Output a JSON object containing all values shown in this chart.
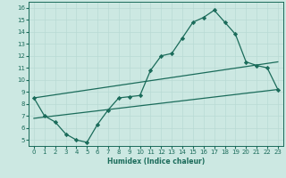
{
  "xlabel": "Humidex (Indice chaleur)",
  "bg_color": "#cce8e2",
  "line_color": "#1a6b5a",
  "grid_color": "#b8dbd4",
  "xlim": [
    -0.5,
    23.5
  ],
  "ylim": [
    4.5,
    16.5
  ],
  "xticks": [
    0,
    1,
    2,
    3,
    4,
    5,
    6,
    7,
    8,
    9,
    10,
    11,
    12,
    13,
    14,
    15,
    16,
    17,
    18,
    19,
    20,
    21,
    22,
    23
  ],
  "yticks": [
    5,
    6,
    7,
    8,
    9,
    10,
    11,
    12,
    13,
    14,
    15,
    16
  ],
  "curve_x": [
    0,
    1,
    2,
    3,
    4,
    5,
    6,
    7,
    8,
    9,
    10,
    11,
    12,
    13,
    14,
    15,
    16,
    17,
    18,
    19,
    20,
    21,
    22,
    23
  ],
  "curve_y": [
    8.5,
    7.0,
    6.5,
    5.5,
    5.0,
    4.8,
    6.3,
    7.5,
    8.5,
    8.6,
    8.7,
    10.8,
    12.0,
    12.2,
    13.5,
    14.8,
    15.2,
    15.8,
    14.8,
    13.8,
    11.5,
    11.2,
    11.0,
    9.2
  ],
  "line2_x": [
    0,
    23
  ],
  "line2_y": [
    8.5,
    11.5
  ],
  "line3_x": [
    0,
    23
  ],
  "line3_y": [
    6.8,
    9.2
  ]
}
